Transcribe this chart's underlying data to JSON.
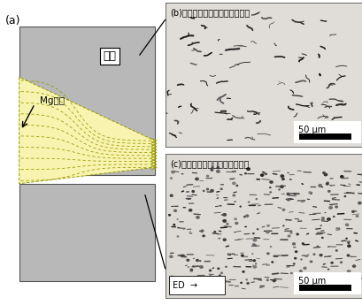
{
  "fig_width": 4.1,
  "fig_height": 3.45,
  "dpi": 100,
  "bg_color": "#ffffff",
  "panel_a_label": "(a)",
  "panel_b_label": "(b)従来製法によるビレット組織",
  "panel_c_label": "(c)ビレットの押出成形後の組織",
  "kanagata_label": "金型",
  "mg_label": "Mg合金",
  "scale_label": "50 μm",
  "ed_label": "ED  →",
  "gray_color": "#b8b8b8",
  "yellow_color": "#f8f4b0",
  "micro_bg_b": "#e0ddd8",
  "micro_bg_c": "#dddad5",
  "box_outline": "#555555"
}
